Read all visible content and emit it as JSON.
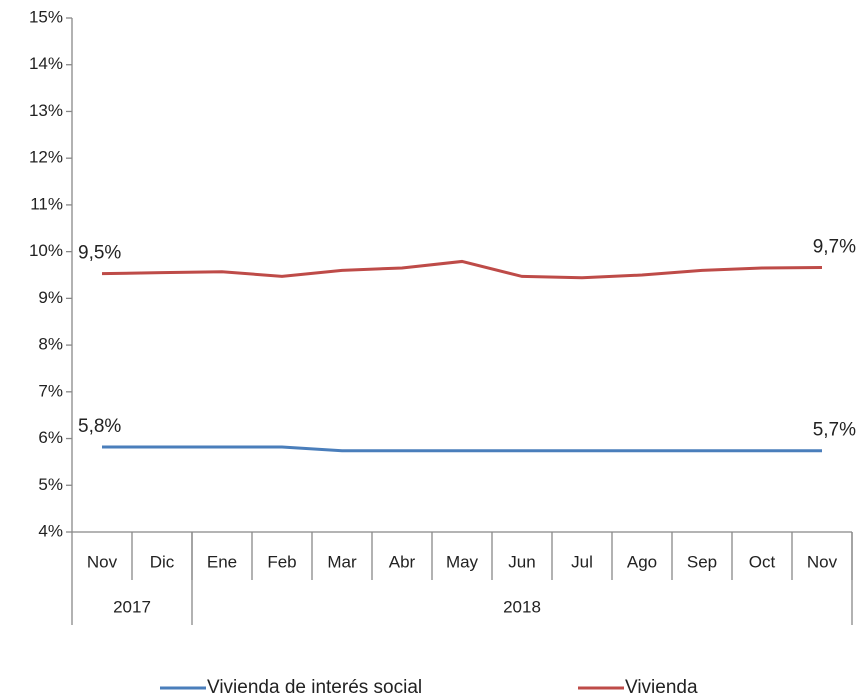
{
  "chart_data": {
    "type": "line",
    "categories": [
      "Nov",
      "Dic",
      "Ene",
      "Feb",
      "Mar",
      "Abr",
      "May",
      "Jun",
      "Jul",
      "Ago",
      "Sep",
      "Oct",
      "Nov"
    ],
    "groups": [
      {
        "label": "2017",
        "span": 2
      },
      {
        "label": "2018",
        "span": 11
      }
    ],
    "series": [
      {
        "name": "Vivienda de interés social",
        "color": "#4a7ebb",
        "values": [
          5.82,
          5.82,
          5.82,
          5.82,
          5.74,
          5.74,
          5.74,
          5.74,
          5.74,
          5.74,
          5.74,
          5.74,
          5.74
        ],
        "value_labels": [
          "5,8%",
          null,
          null,
          null,
          null,
          null,
          null,
          null,
          null,
          null,
          null,
          null,
          "5,7%"
        ]
      },
      {
        "name": "Vivienda",
        "color": "#be4b48",
        "values": [
          9.53,
          9.55,
          9.57,
          9.47,
          9.6,
          9.65,
          9.79,
          9.47,
          9.44,
          9.5,
          9.6,
          9.65,
          9.66
        ],
        "value_labels": [
          "9,5%",
          null,
          null,
          null,
          null,
          null,
          null,
          null,
          null,
          null,
          null,
          null,
          "9,7%"
        ]
      }
    ],
    "ylim": [
      4,
      15
    ],
    "yticks": [
      {
        "value": 4,
        "label": "4%"
      },
      {
        "value": 5,
        "label": "5%"
      },
      {
        "value": 6,
        "label": "6%"
      },
      {
        "value": 7,
        "label": "7%"
      },
      {
        "value": 8,
        "label": "8%"
      },
      {
        "value": 9,
        "label": "9%"
      },
      {
        "value": 10,
        "label": "10%"
      },
      {
        "value": 11,
        "label": "11%"
      },
      {
        "value": 12,
        "label": "12%"
      },
      {
        "value": 13,
        "label": "13%"
      },
      {
        "value": 14,
        "label": "14%"
      },
      {
        "value": 15,
        "label": "15%"
      }
    ],
    "grid": false,
    "legend": "bottom"
  }
}
